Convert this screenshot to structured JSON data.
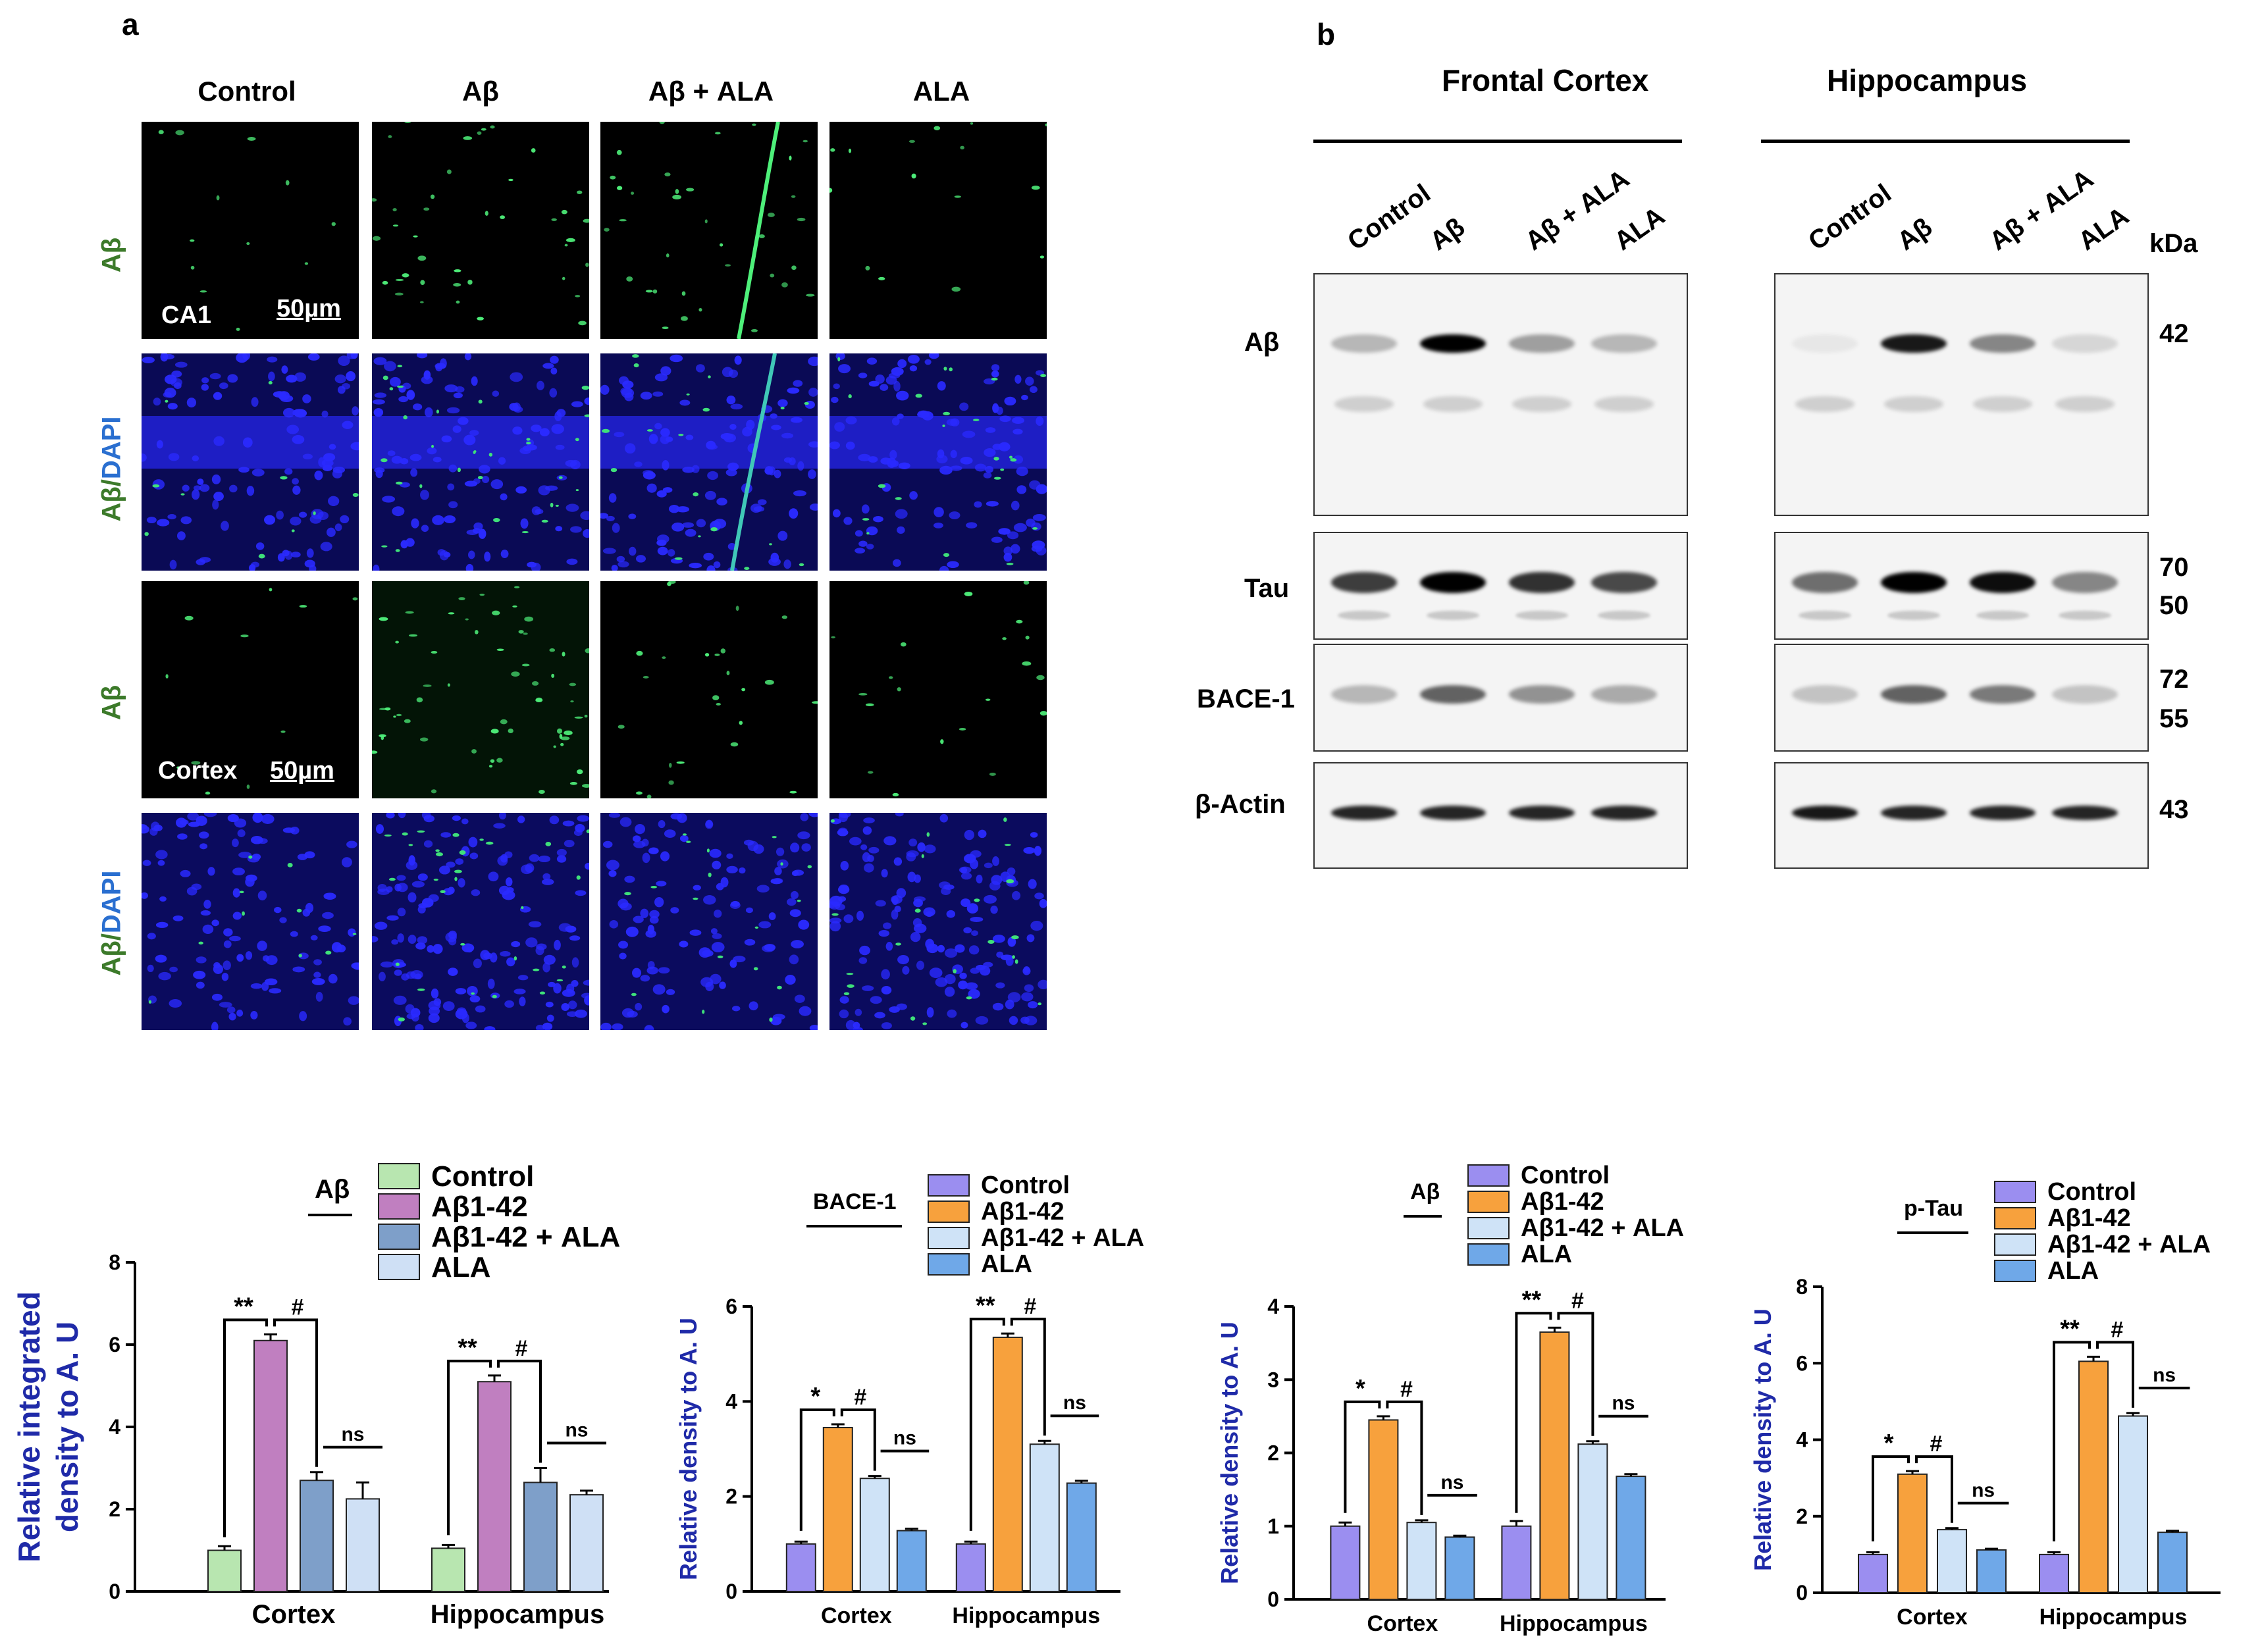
{
  "panel_a": {
    "letter": "a",
    "columns": [
      "Control",
      "Aβ",
      "Aβ + ALA",
      "ALA"
    ],
    "row_labels": {
      "green": "Aβ",
      "merged_prefix": "Aβ/",
      "merged_suffix": "DAPI"
    },
    "ca1": {
      "region": "CA1",
      "scale": "50µm"
    },
    "cortex": {
      "region": "Cortex",
      "scale": "50µm"
    }
  },
  "panel_b": {
    "letter": "b",
    "frontal_title": "Frontal Cortex",
    "hippo_title": "Hippocampus",
    "lanes": [
      "Control",
      "Aβ",
      "Aβ + ALA",
      "ALA"
    ],
    "kda_label": "kDa",
    "proteins": [
      "Aβ",
      "Tau",
      "BACE-1",
      "β-Actin"
    ],
    "kda_values": [
      "42",
      "70",
      "50",
      "72",
      "55",
      "43"
    ]
  },
  "colors": {
    "control_green": "#b8e6b0",
    "purple": "#c07fc0",
    "steelblue": "#7e9fc9",
    "lightblue": "#cfe0f5",
    "lavender": "#9b8ef0",
    "orange": "#f7a13d",
    "paleblue": "#cfe3f7",
    "skyblue": "#6fa8e8"
  },
  "chart_data": [
    {
      "type": "bar",
      "legend_title": "Aβ",
      "ylabel_lines": [
        "Relative integrated",
        "density to A. U"
      ],
      "categories": [
        "Cortex",
        "Hippocampus"
      ],
      "ylim": [
        0,
        8
      ],
      "yticks": [
        "0",
        "2",
        "4",
        "6",
        "8"
      ],
      "series": [
        {
          "name": "Control",
          "values": [
            1.0,
            1.05
          ],
          "err": [
            0.1,
            0.08
          ]
        },
        {
          "name": "Aβ1-42",
          "values": [
            6.1,
            5.1
          ],
          "err": [
            0.15,
            0.15
          ]
        },
        {
          "name": "Aβ1-42 + ALA",
          "values": [
            2.7,
            2.65
          ],
          "err": [
            0.2,
            0.35
          ]
        },
        {
          "name": "ALA",
          "values": [
            2.25,
            2.35
          ],
          "err": [
            0.4,
            0.1
          ]
        }
      ],
      "significance": [
        {
          "left": [
            "**",
            "#",
            "ns"
          ]
        },
        {
          "right": [
            "**",
            "#",
            "ns"
          ]
        }
      ]
    },
    {
      "type": "bar",
      "legend_title": "BACE-1",
      "ylabel_lines": [
        "Relative density to A. U"
      ],
      "categories": [
        "Cortex",
        "Hippocampus"
      ],
      "ylim": [
        0,
        6
      ],
      "yticks": [
        "0",
        "2",
        "4",
        "6"
      ],
      "series": [
        {
          "name": "Control",
          "values": [
            1.0,
            1.0
          ],
          "err": [
            0.05,
            0.05
          ]
        },
        {
          "name": "Aβ1-42",
          "values": [
            3.45,
            5.35
          ],
          "err": [
            0.07,
            0.08
          ]
        },
        {
          "name": "Aβ1-42 + ALA",
          "values": [
            2.38,
            3.1
          ],
          "err": [
            0.05,
            0.07
          ]
        },
        {
          "name": "ALA",
          "values": [
            1.28,
            2.28
          ],
          "err": [
            0.04,
            0.05
          ]
        }
      ],
      "significance": [
        {
          "left": [
            "*",
            "#",
            "ns"
          ]
        },
        {
          "right": [
            "**",
            "#",
            "ns"
          ]
        }
      ]
    },
    {
      "type": "bar",
      "legend_title": "Aβ",
      "ylabel_lines": [
        "Relative density to A. U"
      ],
      "categories": [
        "Cortex",
        "Hippocampus"
      ],
      "ylim": [
        0,
        4
      ],
      "yticks": [
        "0",
        "1",
        "2",
        "3",
        "4"
      ],
      "series": [
        {
          "name": "Control",
          "values": [
            1.0,
            1.0
          ],
          "err": [
            0.05,
            0.07
          ]
        },
        {
          "name": "Aβ1-42",
          "values": [
            2.45,
            3.65
          ],
          "err": [
            0.05,
            0.06
          ]
        },
        {
          "name": "Aβ1-42 + ALA",
          "values": [
            1.05,
            2.12
          ],
          "err": [
            0.03,
            0.04
          ]
        },
        {
          "name": "ALA",
          "values": [
            0.85,
            1.68
          ],
          "err": [
            0.02,
            0.03
          ]
        }
      ],
      "significance": [
        {
          "left": [
            "*",
            "#",
            "ns"
          ]
        },
        {
          "right": [
            "**",
            "#",
            "ns"
          ]
        }
      ]
    },
    {
      "type": "bar",
      "legend_title": "p-Tau",
      "ylabel_lines": [
        "Relative density to A. U"
      ],
      "categories": [
        "Cortex",
        "Hippocampus"
      ],
      "ylim": [
        0,
        8
      ],
      "yticks": [
        "0",
        "2",
        "4",
        "6",
        "8"
      ],
      "series": [
        {
          "name": "Control",
          "values": [
            1.0,
            1.0
          ],
          "err": [
            0.06,
            0.06
          ]
        },
        {
          "name": "Aβ1-42",
          "values": [
            3.1,
            6.05
          ],
          "err": [
            0.08,
            0.12
          ]
        },
        {
          "name": "Aβ1-42 + ALA",
          "values": [
            1.65,
            4.62
          ],
          "err": [
            0.04,
            0.08
          ]
        },
        {
          "name": "ALA",
          "values": [
            1.12,
            1.58
          ],
          "err": [
            0.03,
            0.04
          ]
        }
      ],
      "significance": [
        {
          "left": [
            "*",
            "#",
            "ns"
          ]
        },
        {
          "right": [
            "**",
            "#",
            "ns"
          ]
        }
      ]
    }
  ]
}
